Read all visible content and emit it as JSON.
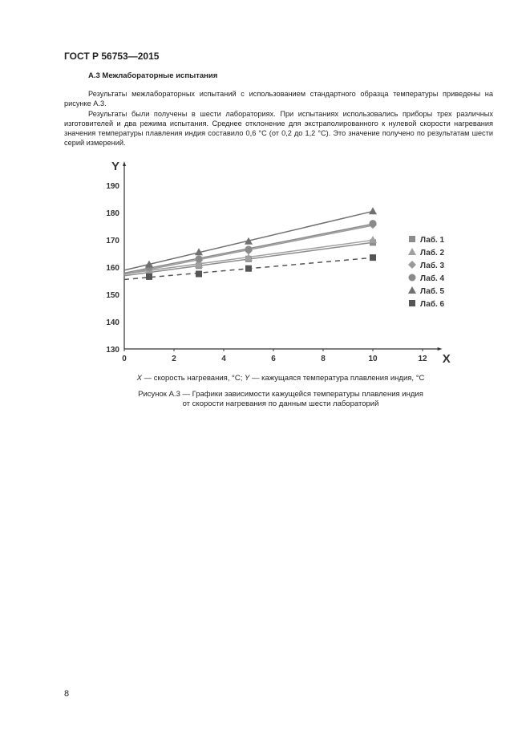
{
  "header": {
    "title": "ГОСТ Р 56753—2015"
  },
  "section": {
    "title": "А.3 Межлабораторные испытания"
  },
  "paragraphs": [
    "Результаты межлабораторных испытаний с использованием стандартного образца температуры приведены на рисунке А.3.",
    "Результаты были получены в шести лабораториях. При испытаниях использовались приборы трех различных изготовителей и два режима испытания. Среднее отклонение для экстраполированного к нулевой скорости нагревания значения температуры плавления индия составило 0,6 °С (от 0,2 до 1,2 °С). Это значение получено по результатам шести серий измерений."
  ],
  "figure": {
    "axis_legend_x": "X",
    "axis_legend_text_x": " — скорость нагревания, °С; ",
    "axis_legend_y": "Y",
    "axis_legend_text_y": " — кажущаяся температура плавления индия, °С",
    "caption_line1": "Рисунок А.3 — Графики зависимости кажущейся температуры плавления индия",
    "caption_line2": "от скорости нагревания по данным шести лабораторий"
  },
  "chart_data": {
    "type": "scatter",
    "xlabel": "X",
    "ylabel": "Y",
    "xlim": [
      0,
      12
    ],
    "ylim": [
      130,
      190
    ],
    "xticks": [
      "0",
      "2",
      "4",
      "6",
      "8",
      "10",
      "12"
    ],
    "yticks": [
      "130",
      "140",
      "150",
      "160",
      "170",
      "180",
      "190"
    ],
    "grid": false,
    "legend": "right",
    "x": [
      1,
      3,
      5,
      10
    ],
    "series": [
      {
        "name": "Лаб. 1",
        "marker": "square",
        "color": "#8c8c8c",
        "values": [
          158,
          160.5,
          163,
          169
        ],
        "trend": "solid"
      },
      {
        "name": "Лаб. 2",
        "marker": "triangle",
        "color": "#a0a0a0",
        "values": [
          159,
          161,
          163.5,
          170
        ],
        "trend": "solid"
      },
      {
        "name": "Лаб. 3",
        "marker": "diamond",
        "color": "#9a9a9a",
        "values": [
          159.5,
          162.5,
          166,
          175.5
        ],
        "trend": "solid"
      },
      {
        "name": "Лаб. 4",
        "marker": "circle",
        "color": "#8a8a8a",
        "values": [
          160,
          163,
          166.5,
          176
        ],
        "trend": "solid"
      },
      {
        "name": "Лаб. 5",
        "marker": "triangle",
        "color": "#707070",
        "values": [
          161,
          165.5,
          169.5,
          180.5
        ],
        "trend": "solid"
      },
      {
        "name": "Лаб. 6",
        "marker": "square",
        "color": "#555555",
        "values": [
          156.5,
          157.5,
          159.5,
          163.5
        ],
        "trend": "dashed"
      }
    ]
  },
  "page_number": "8"
}
